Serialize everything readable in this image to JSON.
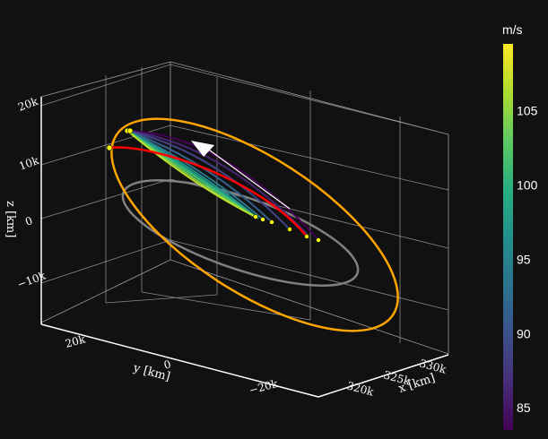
{
  "chart_data": {
    "type": "line3d",
    "axes": {
      "x": {
        "label": "x [km]",
        "ticks": [
          {
            "value": 320000,
            "label": "320k"
          },
          {
            "value": 325000,
            "label": "325k"
          },
          {
            "value": 330000,
            "label": "330k"
          }
        ]
      },
      "y": {
        "label": "y [km]",
        "ticks": [
          {
            "value": 20000,
            "label": "20k"
          },
          {
            "value": 0,
            "label": "0"
          },
          {
            "value": -20000,
            "label": "−20k"
          }
        ]
      },
      "z": {
        "label": "z [km]",
        "ticks": [
          {
            "value": 20000,
            "label": "20k"
          },
          {
            "value": 10000,
            "label": "10k"
          },
          {
            "value": 0,
            "label": "0"
          },
          {
            "value": -10000,
            "label": "−10k"
          }
        ]
      }
    },
    "grid": true,
    "colorbar": {
      "title": "m/s",
      "colorscale": "viridis",
      "range": [
        83.5,
        109.5
      ],
      "ticks": [
        85,
        90,
        95,
        100,
        105
      ]
    },
    "series": [
      {
        "name": "",
        "kind": "orbit",
        "color": "#ffa500"
      },
      {
        "name": "",
        "kind": "orbit",
        "color": "#808080"
      },
      {
        "name": "",
        "kind": "transfer",
        "color": "#ff0000"
      },
      {
        "name": "",
        "kind": "transfers",
        "colormap": "viridis",
        "values": [
          84,
          86,
          88,
          91,
          94,
          97,
          100,
          103,
          106,
          109
        ]
      },
      {
        "name": "",
        "kind": "direction-arrow",
        "color": "#ffffff"
      },
      {
        "name": "",
        "kind": "markers",
        "color": "#ffff00"
      }
    ]
  }
}
